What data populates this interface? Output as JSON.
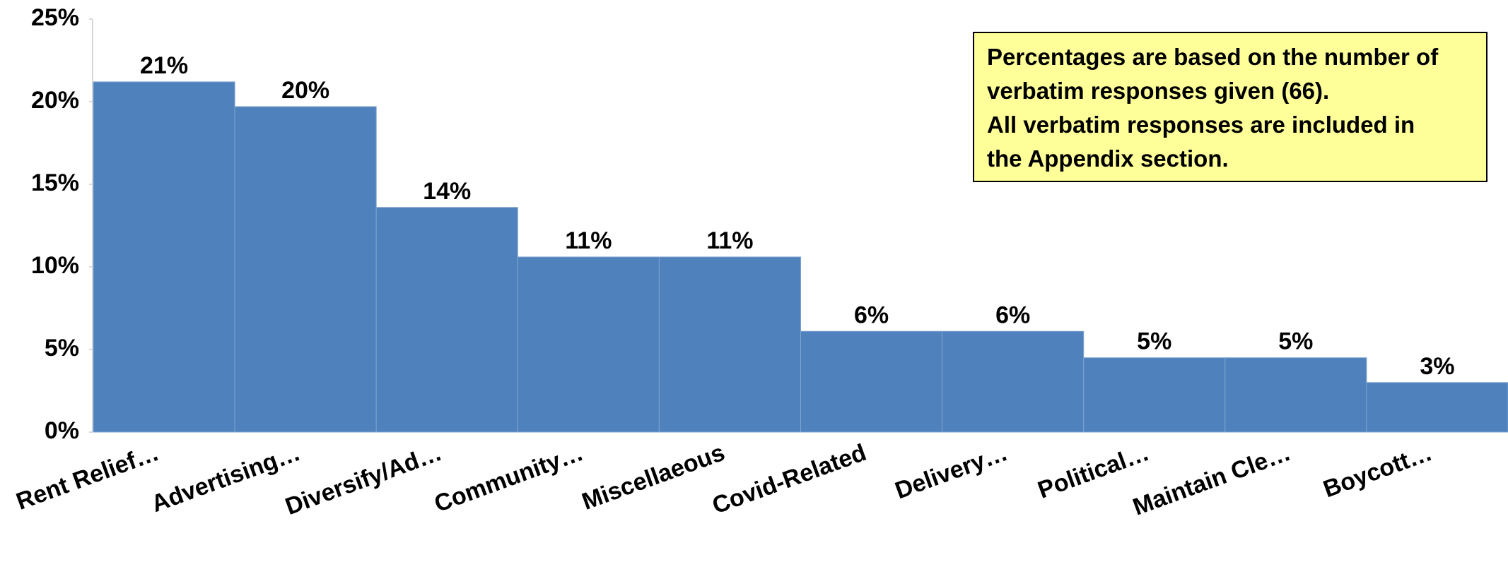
{
  "chart_data": {
    "type": "bar",
    "categories": [
      "Rent Relief…",
      "Advertising…",
      "Diversify/Ad…",
      "Community…",
      "Miscellaeous",
      "Covid-Related",
      "Delivery…",
      "Political…",
      "Maintain Cle…",
      "Boycott…"
    ],
    "values": [
      21.2,
      19.7,
      13.6,
      10.6,
      10.6,
      6.1,
      6.1,
      4.5,
      4.5,
      3.0
    ],
    "value_labels": [
      "21%",
      "20%",
      "14%",
      "11%",
      "11%",
      "6%",
      "6%",
      "5%",
      "5%",
      "3%"
    ],
    "color": "#4f81bd",
    "ylim": [
      0,
      25
    ],
    "yticks": [
      {
        "value": 0,
        "label": "0%"
      },
      {
        "value": 5,
        "label": "5%"
      },
      {
        "value": 10,
        "label": "10%"
      },
      {
        "value": 15,
        "label": "15%"
      },
      {
        "value": 20,
        "label": "20%"
      },
      {
        "value": 25,
        "label": "25%"
      }
    ],
    "annotation": [
      "Percentages are based on the number of",
      "verbatim responses given (66).",
      "All verbatim responses are included in",
      "the Appendix section."
    ]
  }
}
